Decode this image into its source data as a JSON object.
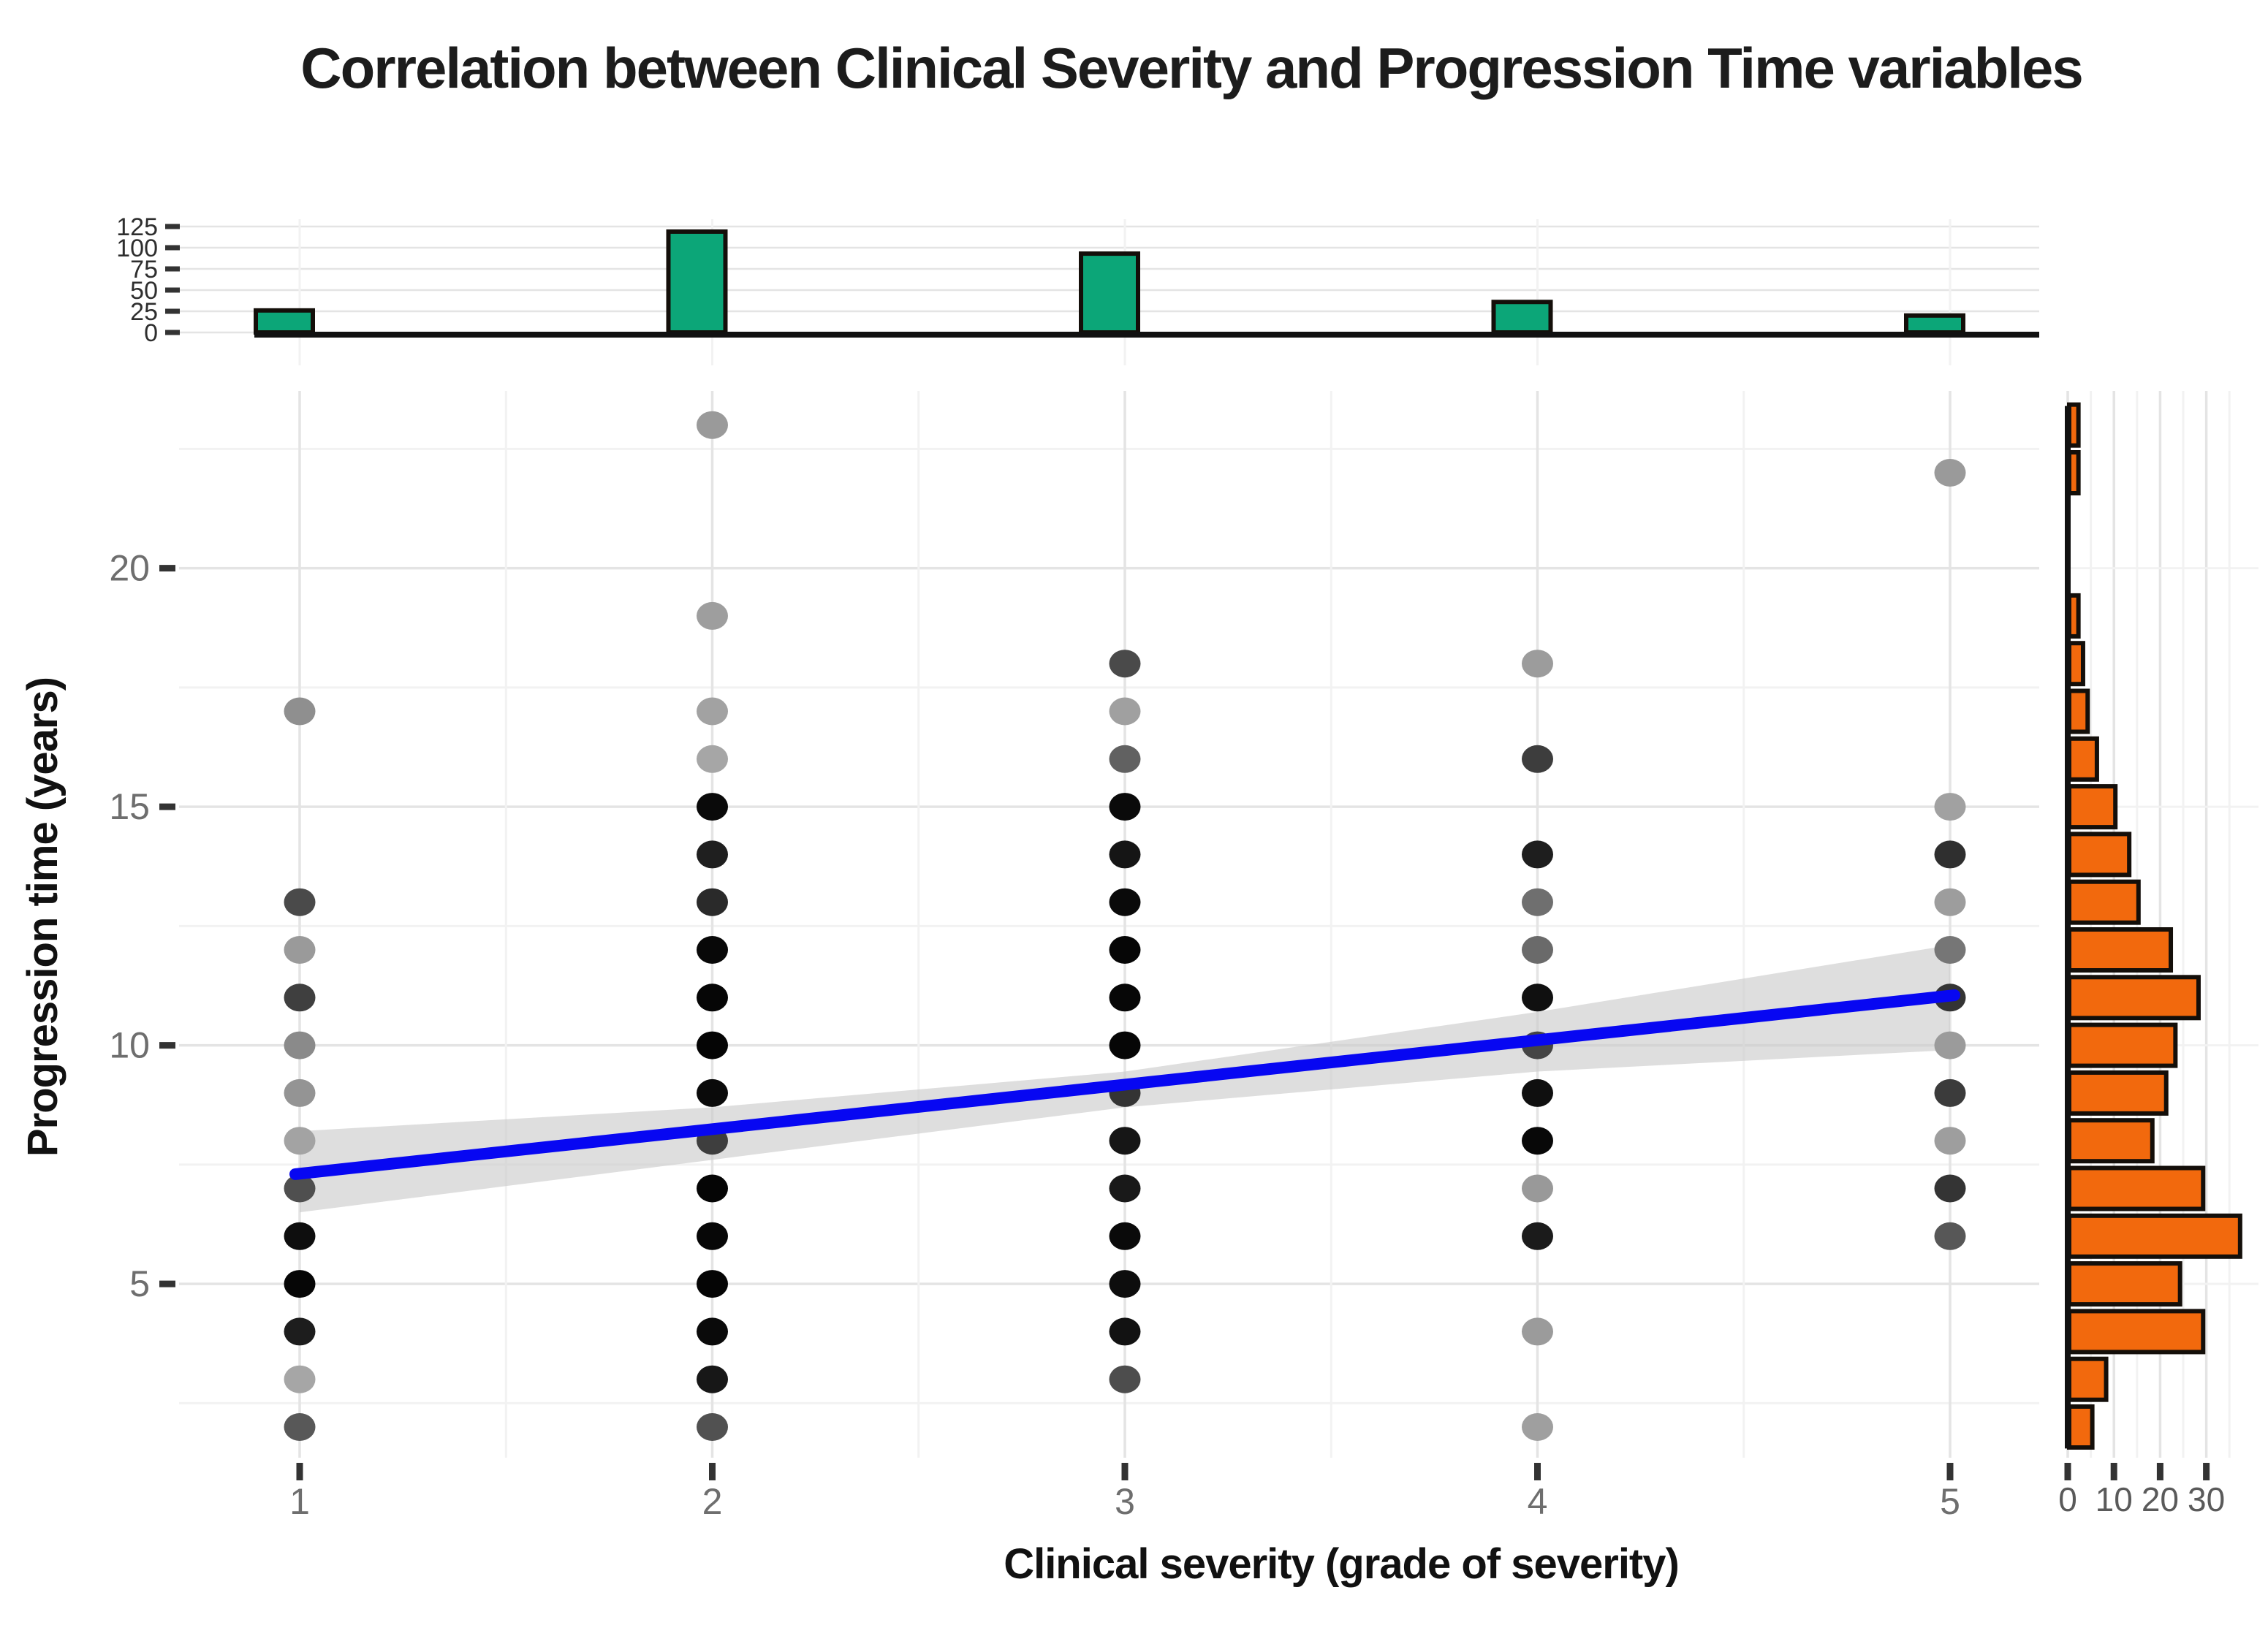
{
  "title": "Correlation between Clinical Severity and Progression Time variables",
  "colors": {
    "top_hist_fill": "#0CA678",
    "right_hist_fill": "#F2690D",
    "bar_stroke": "#140f0a",
    "regression_blue": "#0707F2",
    "ci_band_gray": "#c9c9c9",
    "grid_major": "#e4e4e4",
    "grid_minor": "#f2f2f2",
    "axis_line": "#111111",
    "tick_mark": "#333333"
  },
  "chart_data": {
    "type": "scatter",
    "title": "Correlation between Clinical Severity and Progression Time variables",
    "xlabel": "Clinical severity (grade of severity)",
    "ylabel": "Progression time (years)",
    "xlim": [
      0.71,
      5.21
    ],
    "ylim": [
      1.35,
      23.7
    ],
    "grid": true,
    "x_ticks": [
      1,
      2,
      3,
      4,
      5
    ],
    "x_minor_ticks": [
      1.5,
      2.5,
      3.5,
      4.5
    ],
    "y_ticks": [
      5,
      10,
      15,
      20
    ],
    "y_minor_ticks": [
      2.5,
      7.5,
      12.5,
      17.5,
      22.5
    ],
    "points": [
      {
        "x": 1,
        "values": [
          {
            "y": 17,
            "shade": "#8f8f8f"
          },
          {
            "y": 13,
            "shade": "#4a4a4a"
          },
          {
            "y": 12,
            "shade": "#9a9a9a"
          },
          {
            "y": 11,
            "shade": "#3f3f3f"
          },
          {
            "y": 10,
            "shade": "#8a8a8a"
          },
          {
            "y": 9,
            "shade": "#949494"
          },
          {
            "y": 8,
            "shade": "#a3a3a3"
          },
          {
            "y": 7,
            "shade": "#4f4f4f"
          },
          {
            "y": 6,
            "shade": "#0e0e0e"
          },
          {
            "y": 5,
            "shade": "#060606"
          },
          {
            "y": 4,
            "shade": "#1d1d1d"
          },
          {
            "y": 3,
            "shade": "#a6a6a6"
          },
          {
            "y": 2,
            "shade": "#585858"
          }
        ]
      },
      {
        "x": 2,
        "values": [
          {
            "y": 23,
            "shade": "#9a9a9a"
          },
          {
            "y": 19,
            "shade": "#9e9e9e"
          },
          {
            "y": 17,
            "shade": "#a2a2a2"
          },
          {
            "y": 16,
            "shade": "#a6a6a6"
          },
          {
            "y": 15,
            "shade": "#0a0a0a"
          },
          {
            "y": 14,
            "shade": "#1f1f1f"
          },
          {
            "y": 13,
            "shade": "#2a2a2a"
          },
          {
            "y": 12,
            "shade": "#080808"
          },
          {
            "y": 11,
            "shade": "#060606"
          },
          {
            "y": 10,
            "shade": "#050505"
          },
          {
            "y": 9,
            "shade": "#0a0a0a"
          },
          {
            "y": 8,
            "shade": "#3e3e3e"
          },
          {
            "y": 7,
            "shade": "#050505"
          },
          {
            "y": 6,
            "shade": "#070707"
          },
          {
            "y": 5,
            "shade": "#050505"
          },
          {
            "y": 4,
            "shade": "#0a0a0a"
          },
          {
            "y": 3,
            "shade": "#171717"
          },
          {
            "y": 2,
            "shade": "#515151"
          }
        ]
      },
      {
        "x": 3,
        "values": [
          {
            "y": 18,
            "shade": "#4a4a4a"
          },
          {
            "y": 17,
            "shade": "#a0a0a0"
          },
          {
            "y": 16,
            "shade": "#616161"
          },
          {
            "y": 15,
            "shade": "#0a0a0a"
          },
          {
            "y": 14,
            "shade": "#151515"
          },
          {
            "y": 13,
            "shade": "#0a0a0a"
          },
          {
            "y": 12,
            "shade": "#060606"
          },
          {
            "y": 11,
            "shade": "#070707"
          },
          {
            "y": 10,
            "shade": "#060606"
          },
          {
            "y": 9,
            "shade": "#343434"
          },
          {
            "y": 8,
            "shade": "#161616"
          },
          {
            "y": 7,
            "shade": "#191919"
          },
          {
            "y": 6,
            "shade": "#0a0a0a"
          },
          {
            "y": 5,
            "shade": "#0d0d0d"
          },
          {
            "y": 4,
            "shade": "#121212"
          },
          {
            "y": 3,
            "shade": "#4d4d4d"
          }
        ]
      },
      {
        "x": 4,
        "values": [
          {
            "y": 18,
            "shade": "#9c9c9c"
          },
          {
            "y": 16,
            "shade": "#3d3d3d"
          },
          {
            "y": 14,
            "shade": "#1e1e1e"
          },
          {
            "y": 13,
            "shade": "#6f6f6f"
          },
          {
            "y": 12,
            "shade": "#6a6a6a"
          },
          {
            "y": 11,
            "shade": "#101010"
          },
          {
            "y": 10,
            "shade": "#454545"
          },
          {
            "y": 9,
            "shade": "#0f0f0f"
          },
          {
            "y": 8,
            "shade": "#080808"
          },
          {
            "y": 7,
            "shade": "#999999"
          },
          {
            "y": 6,
            "shade": "#1b1b1b"
          },
          {
            "y": 4,
            "shade": "#9b9b9b"
          },
          {
            "y": 2,
            "shade": "#9f9f9f"
          }
        ]
      },
      {
        "x": 5,
        "values": [
          {
            "y": 22,
            "shade": "#9a9a9a"
          },
          {
            "y": 15,
            "shade": "#a1a1a1"
          },
          {
            "y": 14,
            "shade": "#2f2f2f"
          },
          {
            "y": 13,
            "shade": "#9d9d9d"
          },
          {
            "y": 12,
            "shade": "#767676"
          },
          {
            "y": 11,
            "shade": "#343434"
          },
          {
            "y": 10,
            "shade": "#9b9b9b"
          },
          {
            "y": 9,
            "shade": "#3b3b3b"
          },
          {
            "y": 8,
            "shade": "#9e9e9e"
          },
          {
            "y": 7,
            "shade": "#343434"
          },
          {
            "y": 6,
            "shade": "#575757"
          }
        ]
      }
    ],
    "regression_line": {
      "x": [
        1,
        5
      ],
      "y": [
        7.3,
        11.05
      ],
      "color": "#0707F2"
    },
    "ci_band": {
      "x": [
        1,
        2,
        3,
        4,
        5
      ],
      "upper": [
        8.2,
        8.7,
        9.45,
        10.7,
        12.1
      ],
      "lower": [
        6.5,
        7.6,
        8.7,
        9.45,
        9.9
      ],
      "color": "#c9c9c9"
    },
    "top_histogram": {
      "type": "bar",
      "categories": [
        1,
        2,
        3,
        4,
        5
      ],
      "values": [
        26,
        119,
        93,
        36,
        20
      ],
      "axis_tick_values": [
        0,
        25,
        50,
        75,
        100,
        125
      ],
      "ylim": [
        0,
        133
      ],
      "fill": "#0CA678"
    },
    "right_histogram": {
      "type": "bar",
      "orientation": "horizontal",
      "bins": [
        {
          "value": 23,
          "count": 2
        },
        {
          "value": 22,
          "count": 2
        },
        {
          "value": 19,
          "count": 2
        },
        {
          "value": 18,
          "count": 3
        },
        {
          "value": 17,
          "count": 4
        },
        {
          "value": 16,
          "count": 6
        },
        {
          "value": 15,
          "count": 10
        },
        {
          "value": 14,
          "count": 13
        },
        {
          "value": 13,
          "count": 15
        },
        {
          "value": 12,
          "count": 22
        },
        {
          "value": 11,
          "count": 28
        },
        {
          "value": 10,
          "count": 23
        },
        {
          "value": 9,
          "count": 21
        },
        {
          "value": 8,
          "count": 18
        },
        {
          "value": 7,
          "count": 29
        },
        {
          "value": 6,
          "count": 37
        },
        {
          "value": 5,
          "count": 24
        },
        {
          "value": 4,
          "count": 29
        },
        {
          "value": 3,
          "count": 8
        },
        {
          "value": 2,
          "count": 5
        }
      ],
      "axis_tick_values": [
        0,
        10,
        20,
        30
      ],
      "axis_minor_tick_values": [
        5,
        15,
        25,
        35
      ],
      "xlim": [
        0,
        41
      ],
      "fill": "#F2690D"
    }
  }
}
